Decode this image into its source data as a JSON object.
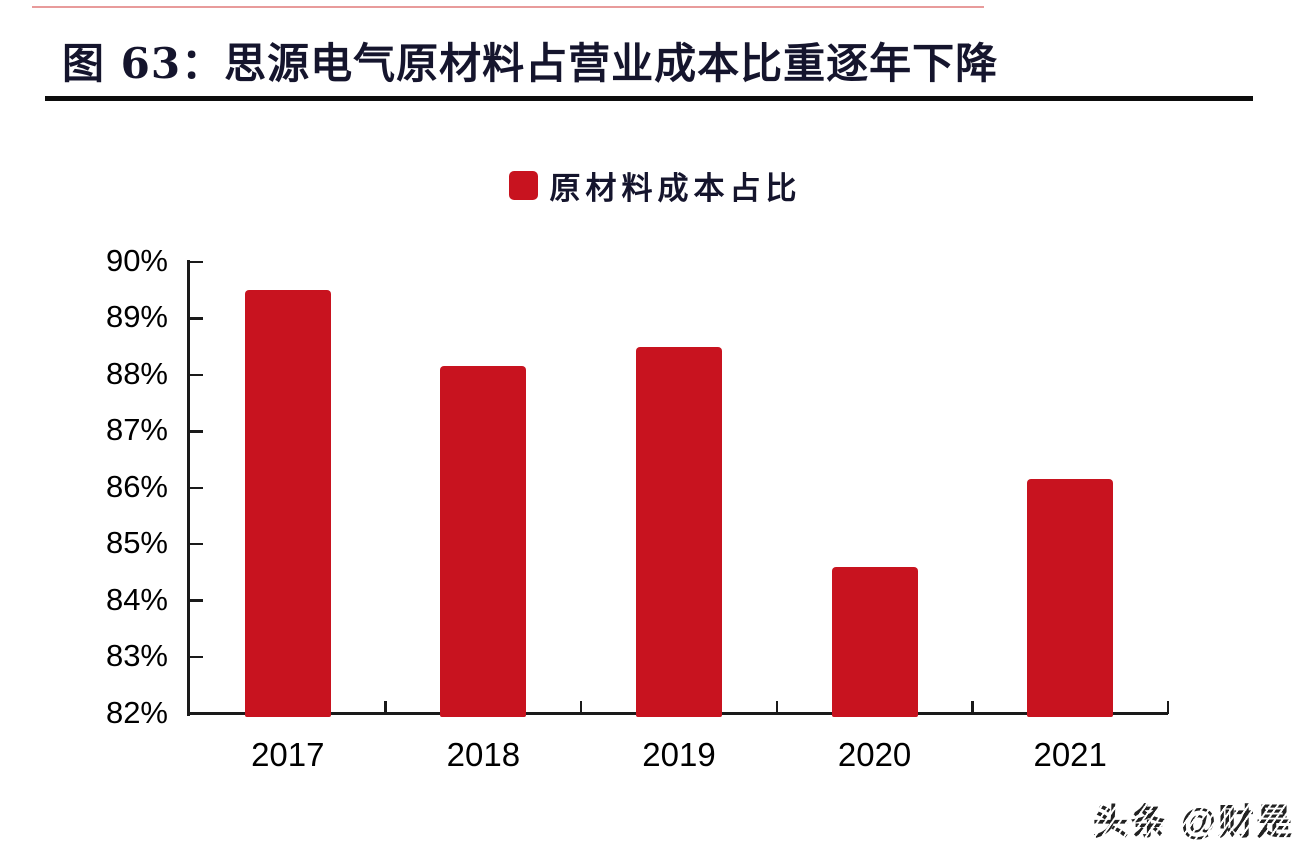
{
  "header": {
    "title": "图 63：思源电气原材料占营业成本比重逐年下降",
    "title_color": "#15152d",
    "rule_color": "#0d0d0d",
    "top_accent_color": "#d64848"
  },
  "legend": {
    "label": "原材料成本占比",
    "swatch_color": "#c8131f"
  },
  "chart_data": {
    "type": "bar",
    "title": "图 63：思源电气原材料占营业成本比重逐年下降",
    "legend_entries": [
      "原材料成本占比"
    ],
    "legend_position": "top-center",
    "categories": [
      "2017",
      "2018",
      "2019",
      "2020",
      "2021"
    ],
    "values": [
      89.5,
      88.15,
      88.5,
      84.6,
      86.15
    ],
    "unit": "%",
    "ylim": [
      82,
      90
    ],
    "ytick_step": 1,
    "ytick_labels": [
      "90%",
      "89%",
      "88%",
      "87%",
      "86%",
      "85%",
      "84%",
      "83%",
      "82%"
    ],
    "xlabel": "",
    "ylabel": "",
    "grid": false,
    "bar_color": "#c8131f",
    "axis_color": "#1a1a1a"
  },
  "watermark": {
    "text": "头条 @财是"
  }
}
